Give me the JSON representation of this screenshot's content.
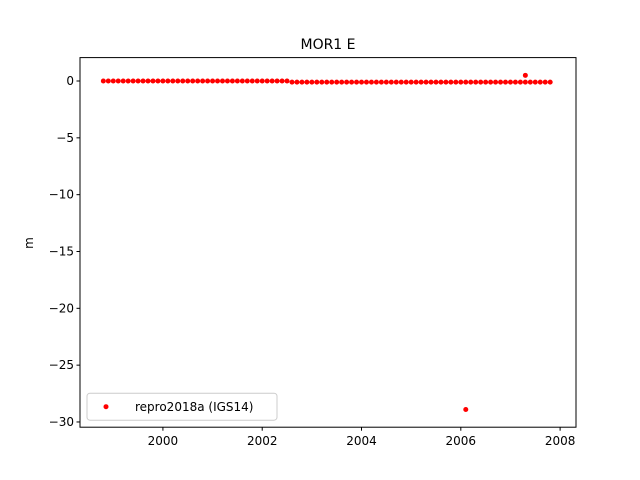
{
  "chart_data": {
    "type": "scatter",
    "title": "MOR1 E",
    "y_label": "m",
    "series": [
      {
        "name": "repro2018a (IGS14)",
        "color": "#ff0000",
        "x": [
          1998.8,
          1998.9,
          1999.0,
          1999.1,
          1999.2,
          1999.3,
          1999.4,
          1999.5,
          1999.6,
          1999.7,
          1999.8,
          1999.9,
          2000.0,
          2000.1,
          2000.2,
          2000.3,
          2000.4,
          2000.5,
          2000.6,
          2000.7,
          2000.8,
          2000.9,
          2001.0,
          2001.1,
          2001.2,
          2001.3,
          2001.4,
          2001.5,
          2001.6,
          2001.7,
          2001.8,
          2001.9,
          2002.0,
          2002.1,
          2002.2,
          2002.3,
          2002.4,
          2002.5,
          2002.6,
          2002.7,
          2002.8,
          2002.9,
          2003.0,
          2003.1,
          2003.2,
          2003.3,
          2003.4,
          2003.5,
          2003.6,
          2003.7,
          2003.8,
          2003.9,
          2004.0,
          2004.1,
          2004.2,
          2004.3,
          2004.4,
          2004.5,
          2004.6,
          2004.7,
          2004.8,
          2004.9,
          2005.0,
          2005.1,
          2005.2,
          2005.3,
          2005.4,
          2005.5,
          2005.6,
          2005.7,
          2005.8,
          2005.9,
          2006.0,
          2006.1,
          2006.2,
          2006.3,
          2006.4,
          2006.5,
          2006.6,
          2006.7,
          2006.8,
          2006.9,
          2007.0,
          2007.1,
          2007.2,
          2007.3,
          2007.4,
          2007.5,
          2007.6,
          2007.7,
          2007.8,
          2007.3,
          2006.1
        ],
        "values": [
          0,
          0,
          0,
          0,
          0,
          0,
          0,
          0,
          0,
          0,
          0,
          0,
          0,
          0,
          0,
          0,
          0,
          0,
          0,
          0,
          0,
          0,
          0,
          0,
          0,
          0,
          0,
          0,
          0,
          0,
          0,
          0,
          0,
          0,
          0,
          0,
          0,
          0,
          -0.1,
          -0.1,
          -0.1,
          -0.1,
          -0.1,
          -0.1,
          -0.1,
          -0.1,
          -0.1,
          -0.1,
          -0.1,
          -0.1,
          -0.1,
          -0.1,
          -0.1,
          -0.1,
          -0.1,
          -0.1,
          -0.1,
          -0.1,
          -0.1,
          -0.1,
          -0.1,
          -0.1,
          -0.1,
          -0.1,
          -0.1,
          -0.1,
          -0.1,
          -0.1,
          -0.1,
          -0.1,
          -0.1,
          -0.1,
          -0.1,
          -0.1,
          -0.1,
          -0.1,
          -0.1,
          -0.1,
          -0.1,
          -0.1,
          -0.1,
          -0.1,
          -0.1,
          -0.1,
          -0.1,
          -0.1,
          -0.1,
          -0.1,
          -0.1,
          -0.1,
          -0.1,
          0.5,
          -28.9
        ]
      }
    ],
    "xlim": [
      1998.33,
      2008.32
    ],
    "xticks": [
      2000,
      2002,
      2004,
      2006,
      2008
    ],
    "ylim": [
      -30.46,
      2.06
    ],
    "yticks": [
      0,
      {
        "value": -5,
        "label": "−5"
      },
      {
        "value": -10,
        "label": "−10"
      },
      {
        "value": -15,
        "label": "−15"
      },
      {
        "value": -20,
        "label": "−20"
      },
      {
        "value": -25,
        "label": "−25"
      },
      {
        "value": -30,
        "label": "−30"
      }
    ],
    "legend": "lower left"
  }
}
